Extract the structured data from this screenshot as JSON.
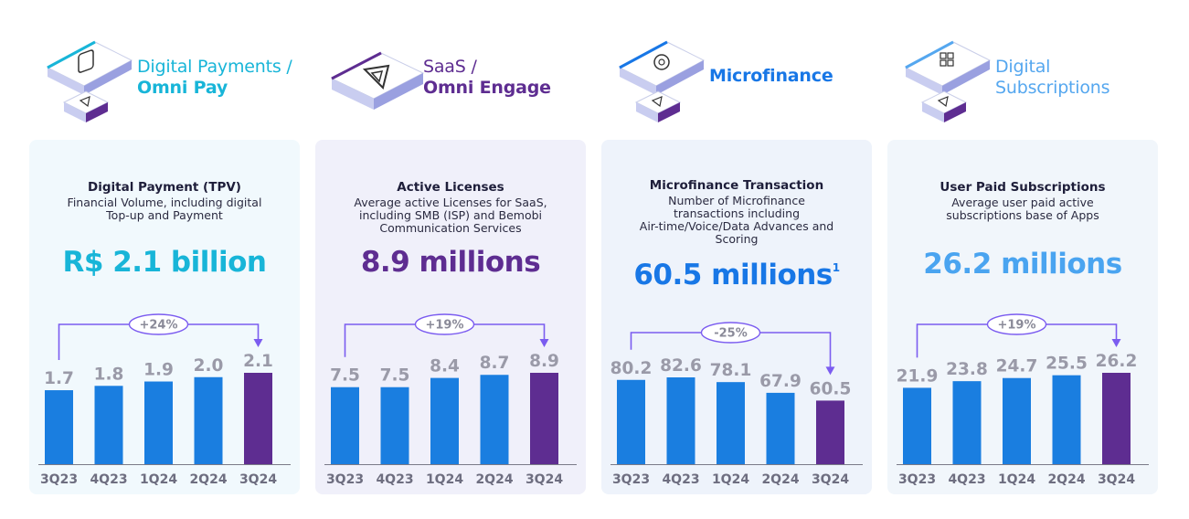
{
  "colors": {
    "bar": "#1a7ee0",
    "bar_highlight": "#5e2d91",
    "arrow": "#7b5cf0",
    "value_label": "#9a9aa8",
    "tick_label": "#6e6e80",
    "card_bg": [
      "#f1f9fd",
      "#f0f0fa",
      "#eef3fb",
      "#f1f6fb"
    ],
    "kpi": [
      "#18b5d8",
      "#5e2d91",
      "#1877e6",
      "#4aa4f0"
    ],
    "header_l1": [
      "#18b5d8",
      "#5e2d91",
      "#1877e6",
      "#55a7ef"
    ],
    "header_l2": [
      "#18b5d8",
      "#5e2d91",
      "#1877e6",
      "#55a7ef"
    ]
  },
  "icons": [
    "digital-payments-iso-icon",
    "saas-iso-icon",
    "microfinance-iso-icon",
    "digital-subscriptions-iso-icon"
  ],
  "sections": [
    {
      "header": {
        "line1": "Digital Payments /",
        "line2": "Omni Pay"
      },
      "title": "Digital Payment (TPV)",
      "description": [
        "Financial Volume, including digital",
        "Top-up and Payment"
      ],
      "kpi": "R$ 2.1 billion",
      "kpi_note": "",
      "growth": "+24%"
    },
    {
      "header": {
        "line1": "SaaS /",
        "line2": "Omni Engage"
      },
      "title": "Active Licenses",
      "description": [
        "Average active Licenses for SaaS,",
        "including SMB (ISP) and Bemobi",
        "Communication Services"
      ],
      "kpi": "8.9 millions",
      "kpi_note": "",
      "growth": "+19%"
    },
    {
      "header": {
        "line1": "Microfinance",
        "line2": ""
      },
      "title": "Microfinance Transaction",
      "description": [
        "Number of Microfinance",
        "transactions including",
        "Air-time/Voice/Data Advances and",
        "Scoring"
      ],
      "kpi": "60.5 millions",
      "kpi_note": "1",
      "growth": "-25%"
    },
    {
      "header": {
        "line1": "Digital",
        "line2": "Subscriptions"
      },
      "title": "User Paid Subscriptions",
      "description": [
        "Average user paid active",
        "subscriptions base of Apps"
      ],
      "kpi": "26.2 millions",
      "kpi_note": "",
      "growth": "+19%"
    }
  ],
  "chart_data": [
    {
      "type": "bar",
      "categories": [
        "3Q23",
        "4Q23",
        "1Q24",
        "2Q24",
        "3Q24"
      ],
      "values": [
        1.7,
        1.8,
        1.9,
        2.0,
        2.1
      ],
      "value_labels": [
        "1.7",
        "1.8",
        "1.9",
        "2.0",
        "2.1"
      ],
      "highlight_index": 4,
      "annotation": "+24%"
    },
    {
      "type": "bar",
      "categories": [
        "3Q23",
        "4Q23",
        "1Q24",
        "2Q24",
        "3Q24"
      ],
      "values": [
        7.5,
        7.5,
        8.4,
        8.7,
        8.9
      ],
      "value_labels": [
        "7.5",
        "7.5",
        "8.4",
        "8.7",
        "8.9"
      ],
      "highlight_index": 4,
      "annotation": "+19%"
    },
    {
      "type": "bar",
      "categories": [
        "3Q23",
        "4Q23",
        "1Q24",
        "2Q24",
        "3Q24"
      ],
      "values": [
        80.2,
        82.6,
        78.1,
        67.9,
        60.5
      ],
      "value_labels": [
        "80.2",
        "82.6",
        "78.1",
        "67.9",
        "60.5"
      ],
      "highlight_index": 4,
      "annotation": "-25%"
    },
    {
      "type": "bar",
      "categories": [
        "3Q23",
        "4Q23",
        "1Q24",
        "2Q24",
        "3Q24"
      ],
      "values": [
        21.9,
        23.8,
        24.7,
        25.5,
        26.2
      ],
      "value_labels": [
        "21.9",
        "23.8",
        "24.7",
        "25.5",
        "26.2"
      ],
      "highlight_index": 4,
      "annotation": "+19%"
    }
  ]
}
